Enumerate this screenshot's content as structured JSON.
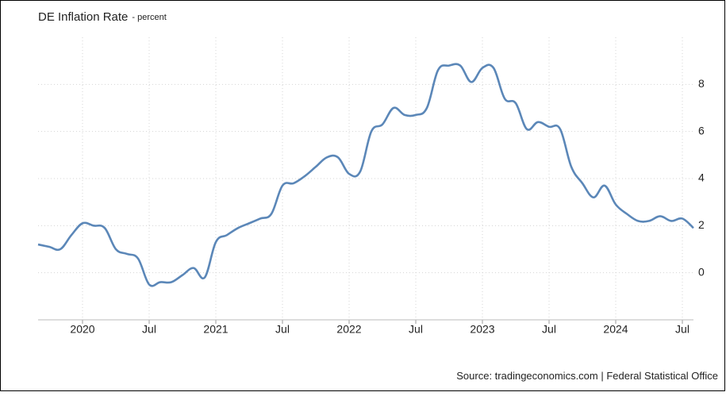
{
  "chart_data": {
    "type": "line",
    "title": "DE Inflation Rate",
    "subtitle": "- percent",
    "source": "Source: tradingeconomics.com | Federal Statistical Office",
    "categories": [
      null,
      null,
      null,
      null,
      "2020",
      null,
      null,
      null,
      null,
      null,
      "Jul",
      null,
      null,
      null,
      null,
      null,
      "2021",
      null,
      null,
      null,
      null,
      null,
      "Jul",
      null,
      null,
      null,
      null,
      null,
      "2022",
      null,
      null,
      null,
      null,
      null,
      "Jul",
      null,
      null,
      null,
      null,
      null,
      "2023",
      null,
      null,
      null,
      null,
      null,
      "Jul",
      null,
      null,
      null,
      null,
      null,
      "2024",
      null,
      null,
      null,
      null,
      null,
      "Jul",
      null
    ],
    "series": [
      {
        "color": "#5b87b8",
        "values": [
          1.2,
          1.1,
          1.0,
          1.6,
          2.1,
          2.0,
          1.9,
          1.0,
          0.8,
          0.6,
          -0.5,
          -0.4,
          -0.4,
          -0.1,
          0.2,
          -0.2,
          1.3,
          1.6,
          1.9,
          2.1,
          2.3,
          2.5,
          3.7,
          3.8,
          4.1,
          4.5,
          4.9,
          4.9,
          4.2,
          4.3,
          6.0,
          6.3,
          7.0,
          6.7,
          6.7,
          7.0,
          8.6,
          8.8,
          8.8,
          8.1,
          8.7,
          8.7,
          7.4,
          7.2,
          6.1,
          6.4,
          6.2,
          6.1,
          4.5,
          3.8,
          3.2,
          3.7,
          2.9,
          2.5,
          2.2,
          2.2,
          2.4,
          2.2,
          2.3,
          1.9
        ]
      }
    ],
    "ylim": [
      -2,
      10
    ],
    "yticks": [
      0,
      2,
      4,
      6,
      8
    ],
    "grid": true
  }
}
